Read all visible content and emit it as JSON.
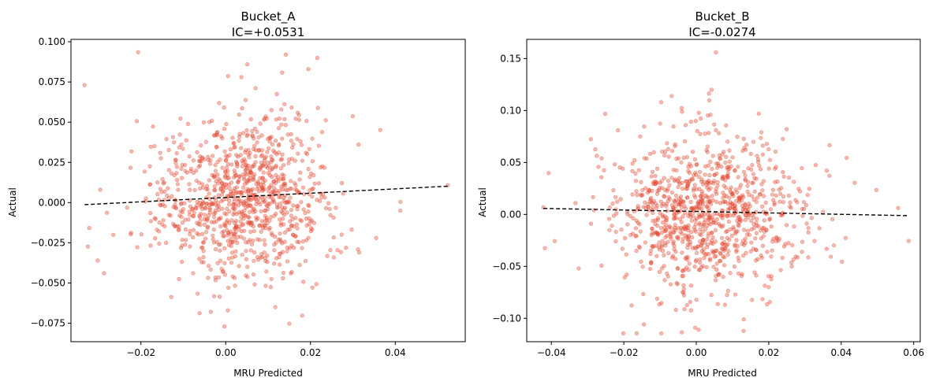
{
  "chart_data": [
    {
      "type": "scatter",
      "title_line1": "Bucket_A",
      "title_line2": "IC=+0.0531",
      "xlabel": "MRU Predicted",
      "ylabel": "Actual",
      "xlim": [
        -0.0365,
        0.0565
      ],
      "ylim": [
        -0.0865,
        0.1015
      ],
      "xticks": [
        {
          "v": -0.02,
          "label": "−0.02"
        },
        {
          "v": 0.0,
          "label": "0.00"
        },
        {
          "v": 0.02,
          "label": "0.02"
        },
        {
          "v": 0.04,
          "label": "0.04"
        }
      ],
      "yticks": [
        {
          "v": -0.075,
          "label": "−0.075"
        },
        {
          "v": -0.05,
          "label": "−0.050"
        },
        {
          "v": -0.025,
          "label": "−0.025"
        },
        {
          "v": 0.0,
          "label": "0.000"
        },
        {
          "v": 0.025,
          "label": "0.025"
        },
        {
          "v": 0.05,
          "label": "0.050"
        },
        {
          "v": 0.075,
          "label": "0.075"
        },
        {
          "v": 0.1,
          "label": "0.100"
        }
      ],
      "fit_line": {
        "x": [
          -0.0333,
          0.0524
        ],
        "y": [
          -0.0013,
          0.0102
        ]
      },
      "points": {
        "n": 1000,
        "x_mean": 0.0033,
        "x_sd": 0.0105,
        "y_mean": 0.0021,
        "y_sd": 0.0245,
        "seed": 17,
        "outliers": [
          [
            -0.0333,
            0.073
          ],
          [
            0.0524,
            0.0108
          ],
          [
            0.0142,
            0.092
          ],
          [
            0.0216,
            0.09
          ],
          [
            0.0195,
            0.083
          ],
          [
            -0.0003,
            -0.077
          ],
          [
            0.0005,
            -0.067
          ],
          [
            -0.0035,
            -0.068
          ],
          [
            0.0117,
            -0.065
          ],
          [
            0.0412,
            0.0005
          ],
          [
            0.0412,
            -0.005
          ],
          [
            -0.0302,
            -0.036
          ],
          [
            -0.0296,
            0.008
          ],
          [
            0.0312,
            -0.029
          ],
          [
            0.0355,
            -0.022
          ],
          [
            -0.0265,
            -0.02
          ],
          [
            0.0051,
            0.086
          ],
          [
            0.0037,
            0.078
          ]
        ]
      },
      "marker_color": "#e34a33"
    },
    {
      "type": "scatter",
      "title_line1": "Bucket_B",
      "title_line2": "IC=-0.0274",
      "xlabel": "MRU Predicted",
      "ylabel": "Actual",
      "xlim": [
        -0.0468,
        0.0618
      ],
      "ylim": [
        -0.1225,
        0.1685
      ],
      "xticks": [
        {
          "v": -0.04,
          "label": "−0.04"
        },
        {
          "v": -0.02,
          "label": "−0.02"
        },
        {
          "v": 0.0,
          "label": "0.00"
        },
        {
          "v": 0.02,
          "label": "0.02"
        },
        {
          "v": 0.04,
          "label": "0.04"
        },
        {
          "v": 0.06,
          "label": "0.06"
        }
      ],
      "yticks": [
        {
          "v": -0.1,
          "label": "−0.10"
        },
        {
          "v": -0.05,
          "label": "−0.05"
        },
        {
          "v": 0.0,
          "label": "0.00"
        },
        {
          "v": 0.05,
          "label": "0.05"
        },
        {
          "v": 0.1,
          "label": "0.10"
        },
        {
          "v": 0.15,
          "label": "0.15"
        }
      ],
      "fit_line": {
        "x": [
          -0.0422,
          0.0586
        ],
        "y": [
          0.0058,
          -0.0012
        ]
      },
      "points": {
        "n": 1000,
        "x_mean": 0.003,
        "x_sd": 0.013,
        "y_mean": 0.002,
        "y_sd": 0.037,
        "seed": 29,
        "outliers": [
          [
            -0.0422,
            0.0068
          ],
          [
            -0.0418,
            -0.0325
          ],
          [
            0.0586,
            -0.0255
          ],
          [
            0.0557,
            0.0062
          ],
          [
            0.0497,
            0.0235
          ],
          [
            0.0437,
            0.0305
          ],
          [
            0.0054,
            0.156
          ],
          [
            0.0042,
            0.12
          ],
          [
            -0.0003,
            -0.109
          ],
          [
            0.0131,
            -0.101
          ],
          [
            -0.0068,
            0.114
          ],
          [
            -0.0097,
            0.108
          ],
          [
            0.0415,
            0.0545
          ],
          [
            0.0402,
            -0.0455
          ],
          [
            -0.0291,
            0.0725
          ],
          [
            0.0079,
            -0.087
          ]
        ]
      },
      "marker_color": "#e34a33"
    }
  ]
}
